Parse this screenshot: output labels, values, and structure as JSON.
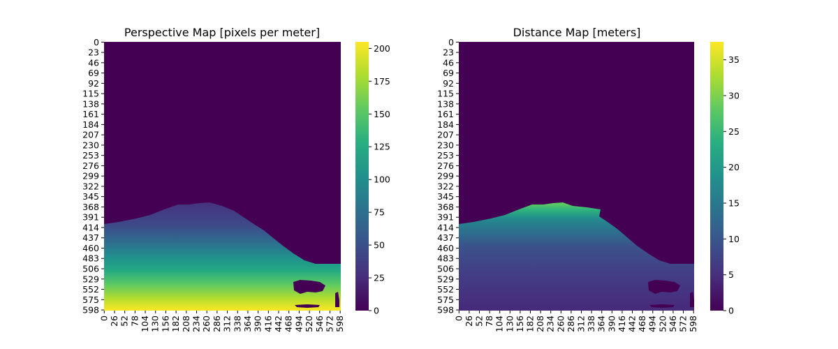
{
  "chart_data": [
    {
      "type": "heatmap",
      "title": "Perspective Map [pixels per meter]",
      "xlabel": "",
      "ylabel": "",
      "x_ticks": [
        "0",
        "26",
        "52",
        "78",
        "104",
        "130",
        "156",
        "182",
        "208",
        "234",
        "260",
        "286",
        "312",
        "338",
        "364",
        "390",
        "416",
        "442",
        "468",
        "494",
        "520",
        "546",
        "572",
        "598"
      ],
      "y_ticks": [
        "0",
        "23",
        "46",
        "69",
        "92",
        "115",
        "138",
        "161",
        "184",
        "207",
        "230",
        "253",
        "276",
        "299",
        "322",
        "345",
        "368",
        "391",
        "414",
        "437",
        "460",
        "483",
        "506",
        "529",
        "552",
        "575",
        "598"
      ],
      "colorbar": {
        "colormap": "viridis",
        "range": [
          0,
          205
        ],
        "ticks": [
          "0",
          "25",
          "50",
          "75",
          "100",
          "125",
          "150",
          "175",
          "200"
        ],
        "tick_values": [
          0,
          25,
          50,
          75,
          100,
          125,
          150,
          175,
          200
        ]
      },
      "regions": [
        {
          "name": "background (upper)",
          "value": 0,
          "rows": [
            0,
            360
          ]
        },
        {
          "name": "ground gradient",
          "value_at_row": {
            "368": 25,
            "414": 45,
            "460": 95,
            "506": 150,
            "552": 180,
            "598": 205
          }
        },
        {
          "name": "water / excluded",
          "value": 0,
          "location": "right side, rows ~390-600"
        }
      ]
    },
    {
      "type": "heatmap",
      "title": "Distance Map [meters]",
      "xlabel": "",
      "ylabel": "",
      "x_ticks": [
        "0",
        "26",
        "52",
        "78",
        "104",
        "130",
        "156",
        "182",
        "208",
        "234",
        "260",
        "286",
        "312",
        "338",
        "364",
        "390",
        "416",
        "442",
        "468",
        "494",
        "520",
        "546",
        "572",
        "598"
      ],
      "y_ticks": [
        "0",
        "23",
        "46",
        "69",
        "92",
        "115",
        "138",
        "161",
        "184",
        "207",
        "230",
        "253",
        "276",
        "299",
        "322",
        "345",
        "368",
        "391",
        "414",
        "437",
        "460",
        "483",
        "506",
        "529",
        "552",
        "575",
        "598"
      ],
      "colorbar": {
        "colormap": "viridis",
        "range": [
          0,
          37.5
        ],
        "ticks": [
          "0",
          "5",
          "10",
          "15",
          "20",
          "25",
          "30",
          "35"
        ],
        "tick_values": [
          0,
          5,
          10,
          15,
          20,
          25,
          30,
          35
        ]
      },
      "regions": [
        {
          "name": "background (upper)",
          "value": 0,
          "rows": [
            0,
            360
          ]
        },
        {
          "name": "ground gradient",
          "value_at_row": {
            "368": 20,
            "414": 10,
            "460": 7,
            "506": 5,
            "552": 4,
            "598": 3.5
          }
        },
        {
          "name": "water / excluded",
          "value": 0,
          "location": "right side, rows ~390-600"
        }
      ]
    }
  ]
}
